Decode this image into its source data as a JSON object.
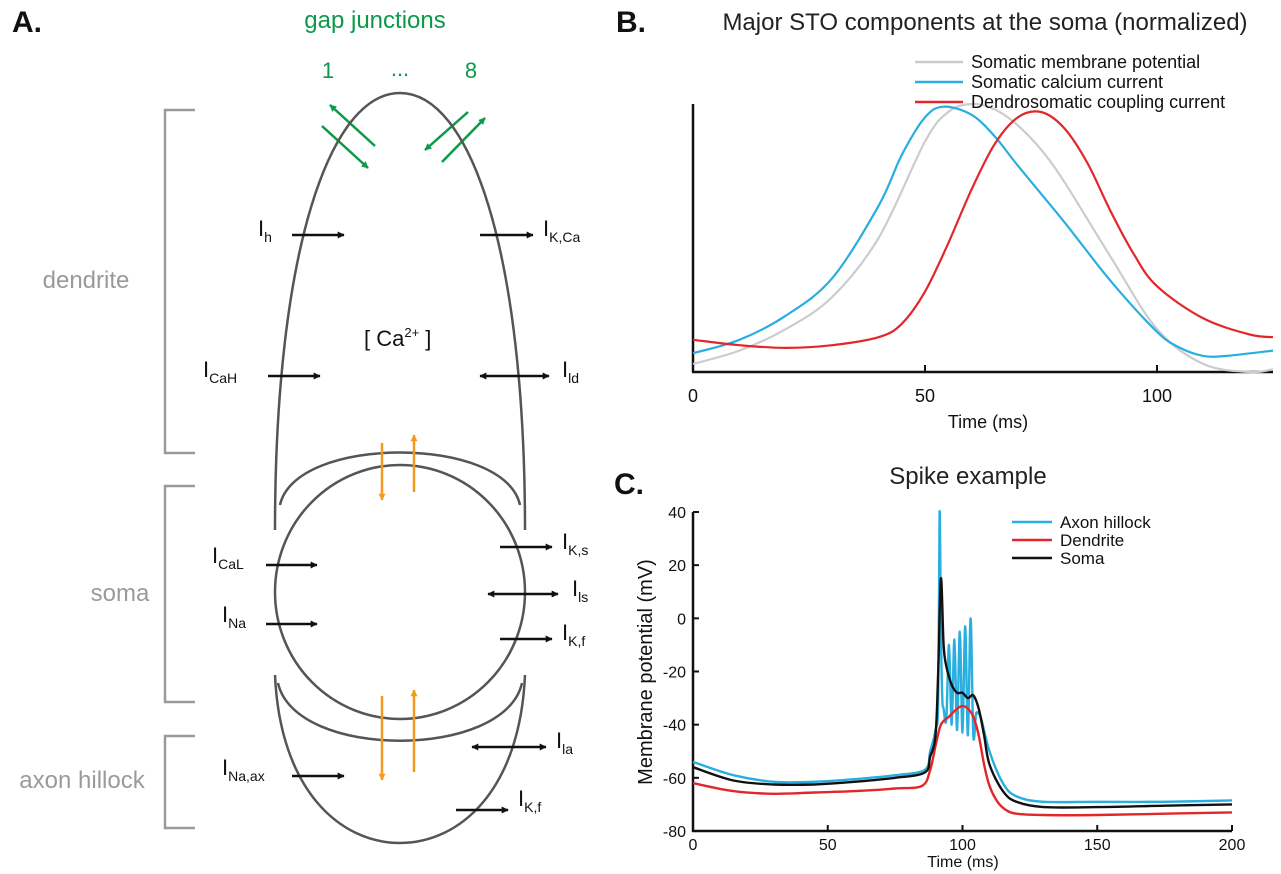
{
  "panel_a": {
    "letter": "A.",
    "gap_junctions": {
      "title": "gap junctions",
      "first": "1",
      "dots": "...",
      "last": "8"
    },
    "compartments": {
      "dendrite": "dendrite",
      "soma": "soma",
      "axon": "axon hillock"
    },
    "calcium": {
      "open": "[ Ca",
      "sup": "2+",
      "close": " ]"
    },
    "currents": {
      "ih": {
        "main": "I",
        "sub": "h"
      },
      "ikca": {
        "main": "I",
        "sub": "K,Ca"
      },
      "icah": {
        "main": "I",
        "sub": "CaH"
      },
      "ild": {
        "main": "I",
        "sub": "ld"
      },
      "ical": {
        "main": "I",
        "sub": "CaL"
      },
      "iks": {
        "main": "I",
        "sub": "K,s"
      },
      "ils": {
        "main": "I",
        "sub": "ls"
      },
      "ina": {
        "main": "I",
        "sub": "Na"
      },
      "ikf": {
        "main": "I",
        "sub": "K,f"
      },
      "inax": {
        "main": "I",
        "sub": "Na,ax"
      },
      "ila": {
        "main": "I",
        "sub": "la"
      },
      "ikf2": {
        "main": "I",
        "sub": "K,f"
      }
    },
    "colors": {
      "gap": "#0a9a48",
      "coupling": "#f39a1e",
      "outline": "#555555",
      "bracket": "#9a9a9a",
      "arrow": "#111111"
    }
  },
  "chart_data": [
    {
      "id": "B",
      "letter": "B.",
      "type": "line",
      "title": "Major STO components at the soma (normalized)",
      "xlabel": "Time (ms)",
      "ylabel": "",
      "xlim": [
        0,
        125
      ],
      "ylim": [
        0,
        1
      ],
      "xticks": [
        "0",
        "50",
        "100"
      ],
      "yticks": [],
      "legend_position": "top-right",
      "series": [
        {
          "name": "Somatic membrane potential",
          "color": "#cccccc",
          "x": [
            0,
            10,
            20,
            30,
            40,
            50,
            55,
            60,
            65,
            70,
            75,
            80,
            90,
            100,
            110,
            120,
            125
          ],
          "y": [
            0.03,
            0.08,
            0.16,
            0.28,
            0.5,
            0.86,
            0.97,
            1.0,
            0.98,
            0.92,
            0.83,
            0.71,
            0.43,
            0.16,
            0.03,
            0.0,
            0.01
          ]
        },
        {
          "name": "Somatic calcium current",
          "color": "#29aee0",
          "x": [
            0,
            10,
            20,
            30,
            40,
            45,
            50,
            54,
            60,
            65,
            70,
            80,
            90,
            100,
            105,
            110,
            115,
            125
          ],
          "y": [
            0.07,
            0.12,
            0.21,
            0.35,
            0.62,
            0.81,
            0.95,
            0.99,
            0.96,
            0.88,
            0.77,
            0.56,
            0.34,
            0.15,
            0.09,
            0.06,
            0.06,
            0.08
          ]
        },
        {
          "name": "Dendrosomatic coupling current",
          "color": "#e2262a",
          "x": [
            0,
            10,
            20,
            30,
            40,
            45,
            50,
            55,
            60,
            65,
            70,
            75,
            80,
            85,
            90,
            95,
            100,
            110,
            120,
            125
          ],
          "y": [
            0.12,
            0.1,
            0.09,
            0.1,
            0.13,
            0.18,
            0.3,
            0.48,
            0.68,
            0.85,
            0.95,
            0.97,
            0.91,
            0.78,
            0.6,
            0.44,
            0.32,
            0.2,
            0.14,
            0.13
          ]
        }
      ]
    },
    {
      "id": "C",
      "letter": "C.",
      "type": "line",
      "title": "Spike example",
      "xlabel": "Time (ms)",
      "ylabel": "Membrane potential (mV)",
      "xlim": [
        0,
        200
      ],
      "ylim": [
        -80,
        40
      ],
      "xticks": [
        "0",
        "50",
        "100",
        "150",
        "200"
      ],
      "yticks": [
        "40",
        "20",
        "0",
        "-20",
        "-40",
        "-60",
        "-80"
      ],
      "legend_position": "top-right",
      "series": [
        {
          "name": "Axon hillock",
          "color": "#29aee0",
          "x": [
            0,
            15,
            30,
            45,
            60,
            75,
            86,
            88,
            90,
            91,
            91.5,
            92,
            92.5,
            93,
            94,
            95,
            96,
            97,
            98,
            99,
            100,
            101,
            102,
            103,
            104,
            105,
            106,
            107,
            110,
            115,
            120,
            130,
            150,
            175,
            200
          ],
          "y": [
            -54,
            -59,
            -61.5,
            -61.5,
            -60.5,
            -59,
            -57,
            -50,
            -42,
            -30,
            40,
            -5,
            -30,
            -34,
            -38,
            -10,
            -40,
            -8,
            -42,
            -5,
            -43,
            -3,
            -44,
            0,
            -44,
            -36,
            -36,
            -38,
            -50,
            -62,
            -67,
            -69,
            -69,
            -69,
            -68.5
          ]
        },
        {
          "name": "Dendrite",
          "color": "#e2262a",
          "x": [
            0,
            15,
            30,
            45,
            60,
            75,
            85,
            88,
            90,
            92,
            95,
            98,
            100,
            102,
            104,
            106,
            108,
            110,
            113,
            116,
            120,
            130,
            150,
            175,
            200
          ],
          "y": [
            -62,
            -65,
            -66,
            -65.5,
            -65,
            -64,
            -63,
            -57,
            -48,
            -40,
            -37,
            -34,
            -33,
            -34,
            -37,
            -44,
            -55,
            -63,
            -69,
            -72,
            -73.5,
            -74,
            -74,
            -73.5,
            -73
          ]
        },
        {
          "name": "Soma",
          "color": "#111111",
          "x": [
            0,
            15,
            30,
            45,
            60,
            75,
            86,
            88,
            90,
            91,
            92,
            93,
            94,
            96,
            98,
            100,
            102,
            104,
            106,
            108,
            110,
            115,
            120,
            130,
            150,
            175,
            200
          ],
          "y": [
            -56,
            -61,
            -62.5,
            -62.5,
            -61.5,
            -60,
            -58,
            -52,
            -44,
            -20,
            15,
            -10,
            -18,
            -25,
            -28,
            -28,
            -30,
            -29,
            -34,
            -44,
            -55,
            -65,
            -69,
            -71,
            -71,
            -70.5,
            -70
          ]
        }
      ]
    }
  ]
}
